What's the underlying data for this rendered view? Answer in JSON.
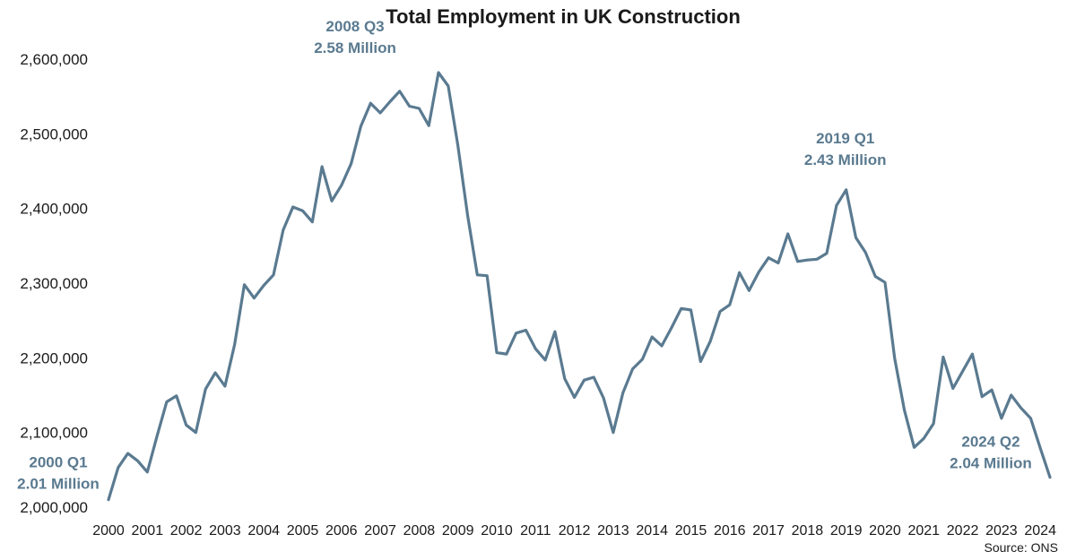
{
  "chart_data": {
    "type": "line",
    "title": "Total Employment in UK Construction",
    "source": "Source: ONS",
    "xlabel": "",
    "ylabel": "",
    "ylim": [
      2000000,
      2600000
    ],
    "y_ticks": [
      2000000,
      2100000,
      2200000,
      2300000,
      2400000,
      2500000,
      2600000
    ],
    "y_tick_labels": [
      "2,000,000",
      "2,100,000",
      "2,200,000",
      "2,300,000",
      "2,400,000",
      "2,500,000",
      "2,600,000"
    ],
    "x_tick_labels": [
      "2000",
      "2001",
      "2002",
      "2003",
      "2004",
      "2005",
      "2006",
      "2007",
      "2008",
      "2009",
      "2010",
      "2011",
      "2012",
      "2013",
      "2014",
      "2015",
      "2016",
      "2017",
      "2018",
      "2019",
      "2020",
      "2021",
      "2022",
      "2023",
      "2024"
    ],
    "grid": false,
    "line_color": "#5a7a90",
    "annotation_color": "#5a7a90",
    "series": [
      {
        "start": "2000 Q1",
        "frequency": "quarterly",
        "values": [
          2010000,
          2053000,
          2072000,
          2062000,
          2047000,
          2095000,
          2141000,
          2149000,
          2110000,
          2100000,
          2158000,
          2180000,
          2162000,
          2218000,
          2298000,
          2280000,
          2297000,
          2311000,
          2371000,
          2402000,
          2397000,
          2382000,
          2456000,
          2410000,
          2431000,
          2460000,
          2510000,
          2541000,
          2528000,
          2543000,
          2557000,
          2537000,
          2534000,
          2511000,
          2582000,
          2564000,
          2484000,
          2391000,
          2311000,
          2310000,
          2207000,
          2205000,
          2233000,
          2237000,
          2212000,
          2197000,
          2235000,
          2172000,
          2147000,
          2170000,
          2174000,
          2146000,
          2100000,
          2153000,
          2185000,
          2198000,
          2228000,
          2216000,
          2240000,
          2266000,
          2264000,
          2195000,
          2222000,
          2262000,
          2271000,
          2314000,
          2290000,
          2315000,
          2334000,
          2327000,
          2366000,
          2329000,
          2331000,
          2332000,
          2340000,
          2404000,
          2425000,
          2361000,
          2341000,
          2309000,
          2301000,
          2199000,
          2130000,
          2080000,
          2092000,
          2112000,
          2201000,
          2159000,
          2182000,
          2205000,
          2148000,
          2157000,
          2119000,
          2150000,
          2133000,
          2119000,
          2079000,
          2040000
        ]
      }
    ],
    "annotations": [
      {
        "line1": "2000 Q1",
        "line2": "2.01 Million",
        "index": 0
      },
      {
        "line1": "2008 Q3",
        "line2": "2.58 Million",
        "index": 34
      },
      {
        "line1": "2019 Q1",
        "line2": "2.43 Million",
        "index": 76
      },
      {
        "line1": "2024 Q2",
        "line2": "2.04 Million",
        "index": 97
      }
    ]
  }
}
